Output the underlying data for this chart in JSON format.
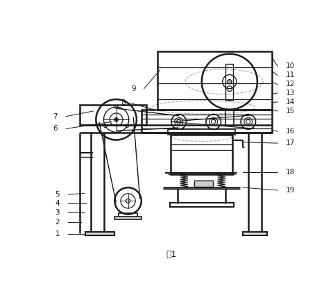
{
  "title": "图1",
  "bg_color": "#ffffff",
  "line_color": "#1a1a1a",
  "label_color": "#1a1a1a",
  "dashed_color": "#aaaaaa"
}
